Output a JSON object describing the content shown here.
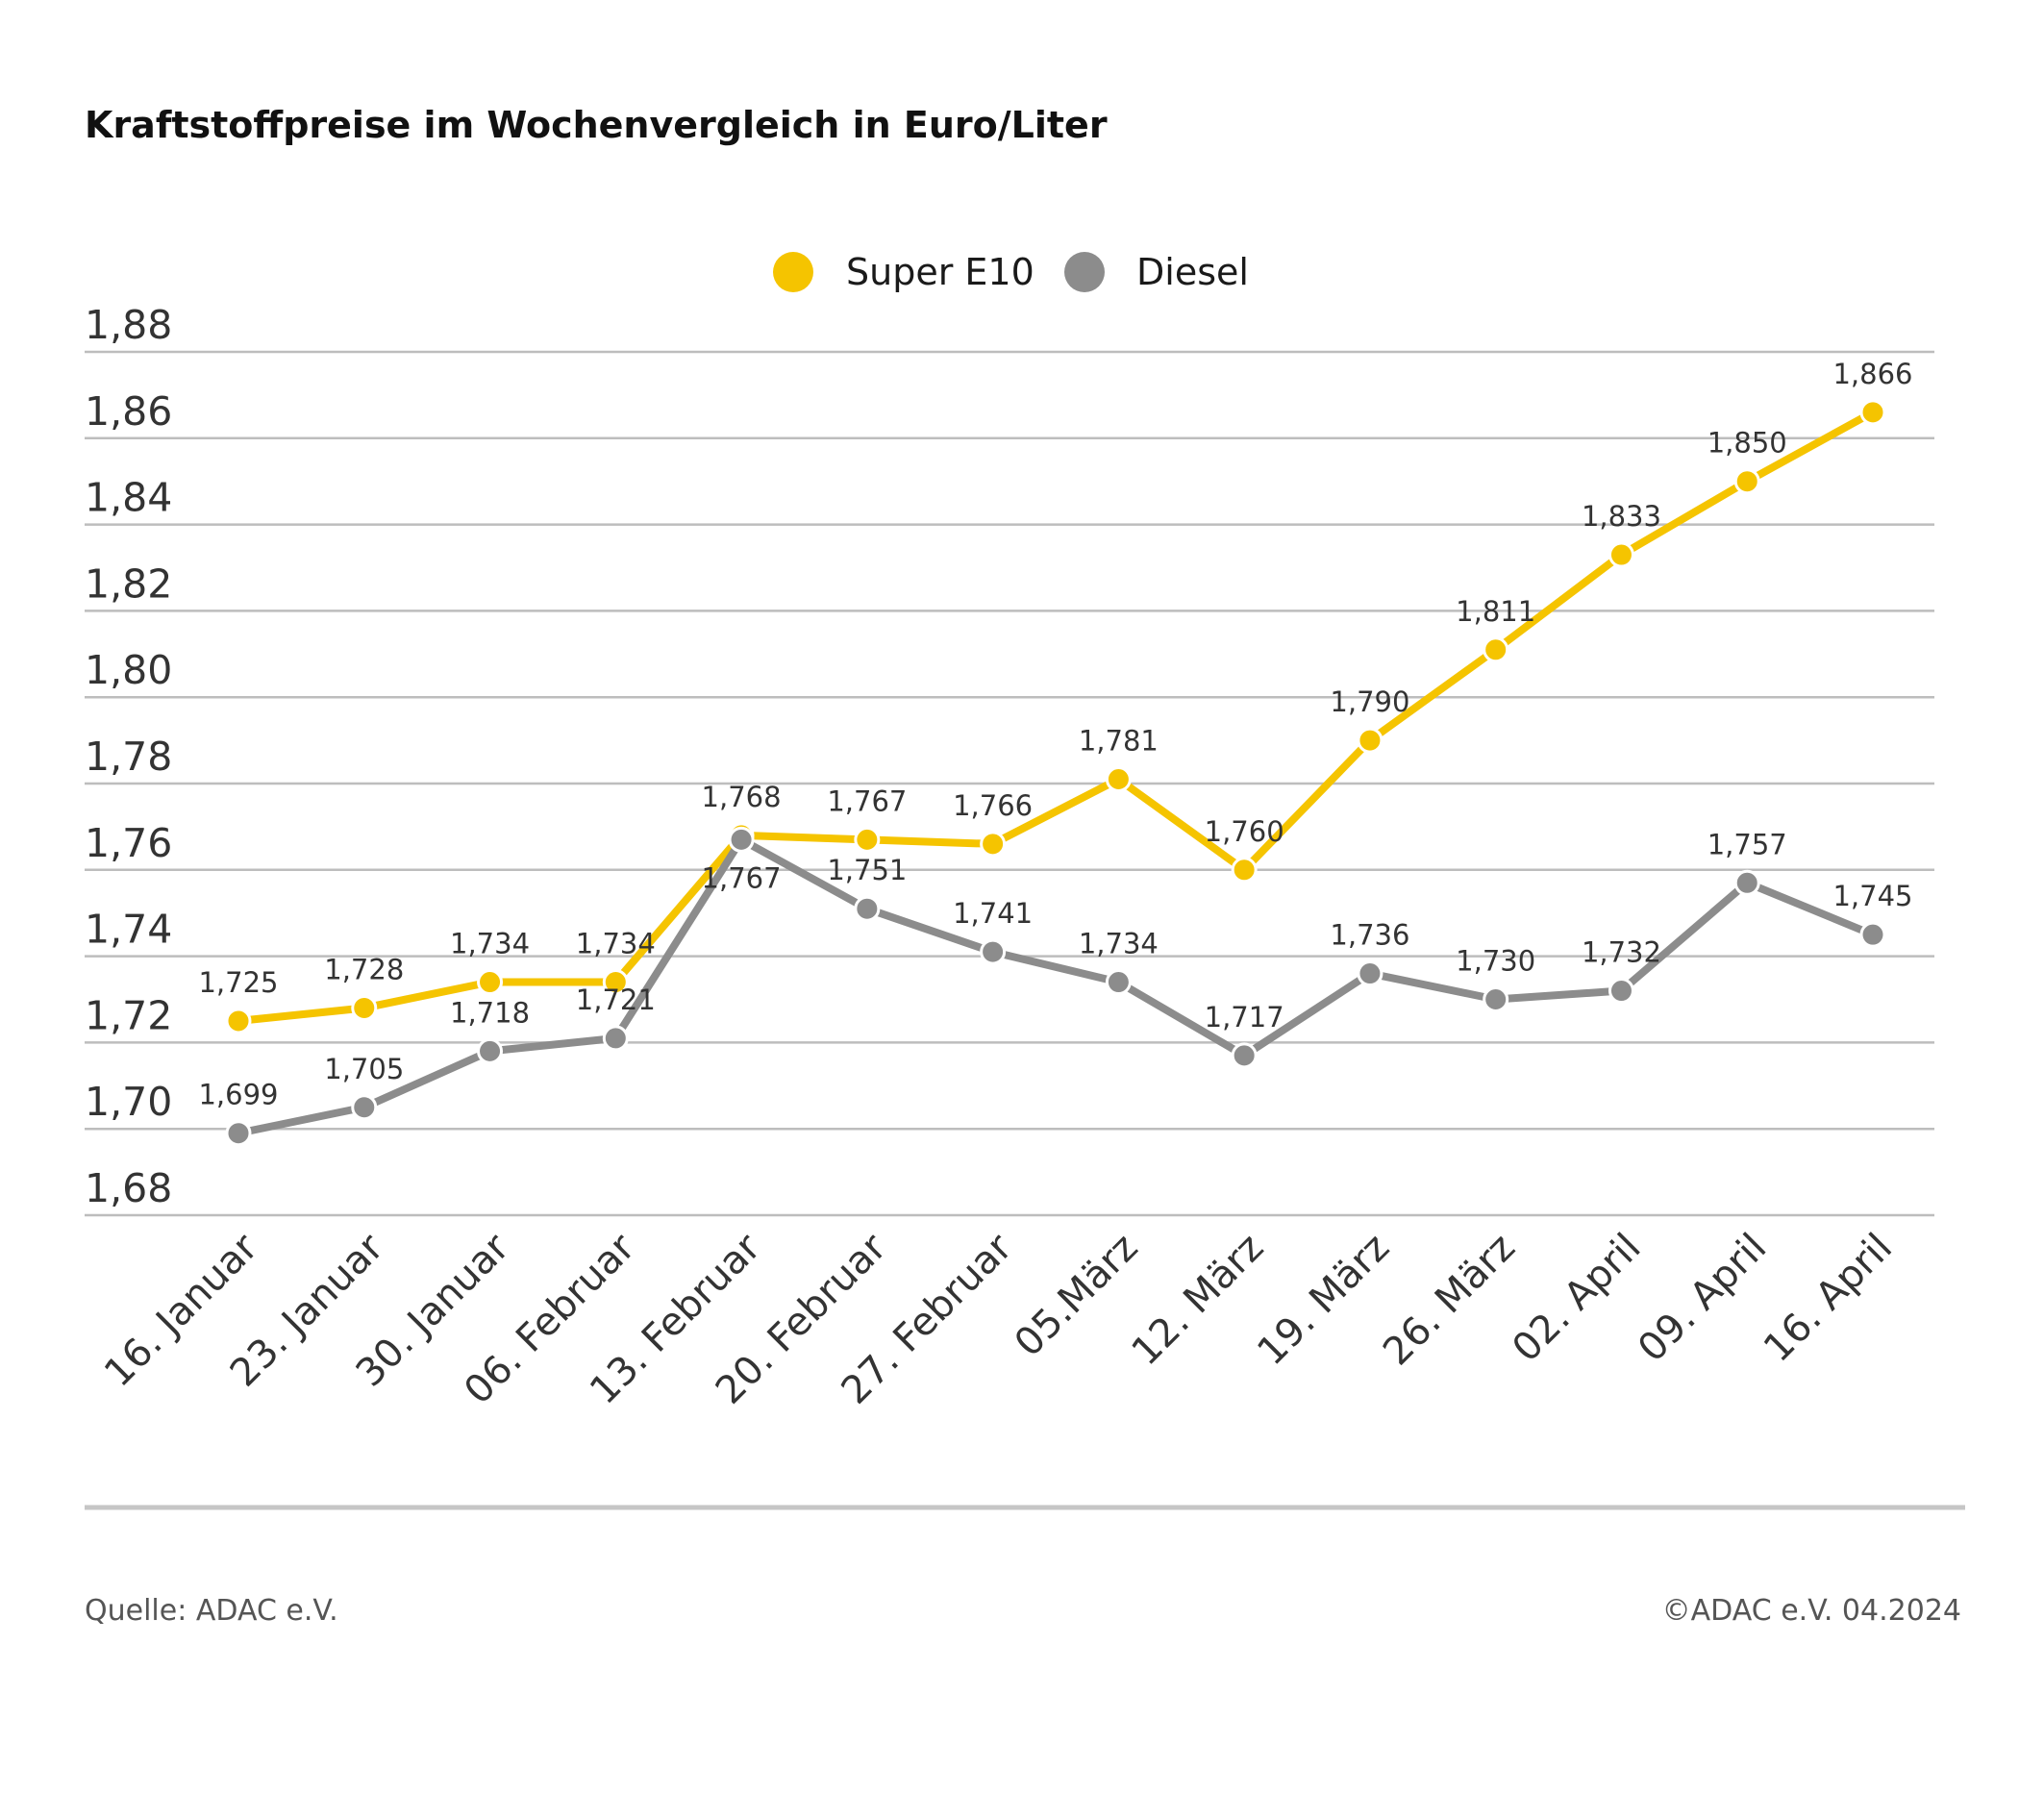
{
  "chart_data": {
    "type": "line",
    "title": "Kraftstoffpreise im Wochenvergleich in Euro/Liter",
    "categories": [
      "16. Januar",
      "23. Januar",
      "30. Januar",
      "06. Februar",
      "13. Februar",
      "20. Februar",
      "27. Februar",
      "05.März",
      "12. März",
      "19. März",
      "26. März",
      "02. April",
      "09. April",
      "16. April"
    ],
    "series": [
      {
        "name": "Super E10",
        "color": "#f5c400",
        "values": [
          1.725,
          1.728,
          1.734,
          1.734,
          1.768,
          1.767,
          1.766,
          1.781,
          1.76,
          1.79,
          1.811,
          1.833,
          1.85,
          1.866
        ],
        "labels": [
          "1,725",
          "1,728",
          "1,734",
          "1,734",
          "1,768",
          "1,767",
          "1,766",
          "1,781",
          "1,760",
          "1,790",
          "1,811",
          "1,833",
          "1,850",
          "1,866"
        ]
      },
      {
        "name": "Diesel",
        "color": "#8c8c8c",
        "values": [
          1.699,
          1.705,
          1.718,
          1.721,
          1.767,
          1.751,
          1.741,
          1.734,
          1.717,
          1.736,
          1.73,
          1.732,
          1.757,
          1.745
        ],
        "labels": [
          "1,699",
          "1,705",
          "1,718",
          "1,721",
          "1,767",
          "1,751",
          "1,741",
          "1,734",
          "1,717",
          "1,736",
          "1,730",
          "1,732",
          "1,757",
          "1,745"
        ]
      }
    ],
    "yticks": [
      "1,88",
      "1,86",
      "1,84",
      "1,82",
      "1,80",
      "1,78",
      "1,76",
      "1,74",
      "1,72",
      "1,70",
      "1,68"
    ],
    "ylim": [
      1.68,
      1.88
    ],
    "grid": true,
    "legend_position": "top-center"
  },
  "footer": {
    "source": "Quelle: ADAC e.V.",
    "copyright": "©ADAC e.V. 04.2024"
  }
}
